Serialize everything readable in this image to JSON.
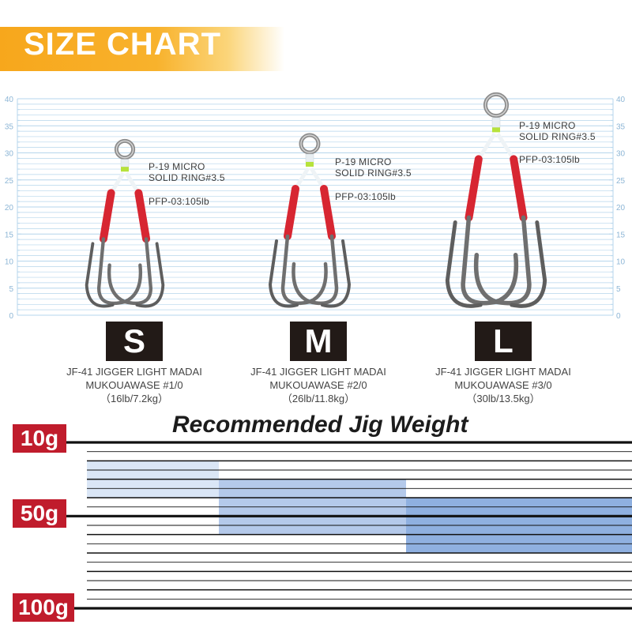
{
  "header": {
    "title": "SIZE CHART"
  },
  "ruler": {
    "ticks": [
      "0",
      "5",
      "10",
      "15",
      "20",
      "25",
      "30",
      "35",
      "40"
    ],
    "line_color": "#b6d6ec",
    "label_color": "#8db6d6"
  },
  "hooks": [
    {
      "size": "S",
      "model": "JF-41 JIGGER LIGHT MADAI",
      "model2": "MUKOUAWASE #1/0",
      "spec": "（16lb/7.2kg）",
      "ring_label": "P-19 MICRO",
      "ring_label2": "SOLID RING#3.5",
      "line_label": "PFP-03:105lb",
      "length_mm": 29
    },
    {
      "size": "M",
      "model": "JF-41 JIGGER LIGHT MADAI",
      "model2": "MUKOUAWASE #2/0",
      "spec": "（26lb/11.8kg）",
      "ring_label": "P-19 MICRO",
      "ring_label2": "SOLID RING#3.5",
      "line_label": "PFP-03:105lb",
      "length_mm": 30
    },
    {
      "size": "L",
      "model": "JF-41 JIGGER LIGHT MADAI",
      "model2": "MUKOUAWASE #3/0",
      "spec": "（30lb/13.5kg）",
      "ring_label": "P-19 MICRO",
      "ring_label2": "SOLID RING#3.5",
      "line_label": "PFP-03:105lb",
      "length_mm": 37
    }
  ],
  "recommended": {
    "title": "Recommended Jig Weight",
    "weights": [
      "10g",
      "50g",
      "100g"
    ],
    "ranges": [
      {
        "size": "S",
        "min_g": 20,
        "max_g": 40,
        "color": "#dae6f6"
      },
      {
        "size": "M",
        "min_g": 30,
        "max_g": 60,
        "color": "#b4c9ea"
      },
      {
        "size": "L",
        "min_g": 40,
        "max_g": 70,
        "color": "#8fb0e0"
      }
    ]
  },
  "colors": {
    "accent": "#f7a71c",
    "badge": "#221a17",
    "weight_tab": "#c01c2c",
    "thread": "#d72632",
    "marker": "#b6e23b"
  }
}
